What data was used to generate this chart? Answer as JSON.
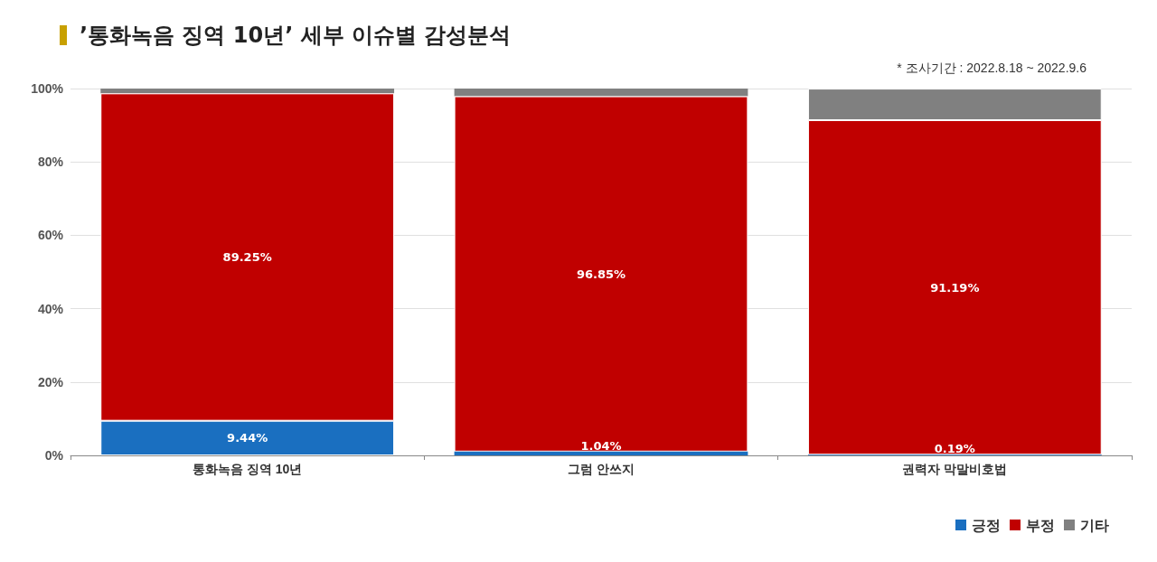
{
  "chart_data": {
    "type": "bar",
    "title": "’통화녹음 징역 10년’ 세부 이슈별 감성분석",
    "annotations": [
      "* 조사기간 : 2022.8.18 ~ 2022.9.6"
    ],
    "categories": [
      "통화녹음 징역 10년",
      "그럼 안쓰지",
      "권력자 막말비호법"
    ],
    "stacked": true,
    "series": [
      {
        "name": "긍정",
        "color": "#1a6fc0",
        "values": [
          9.44,
          1.04,
          0.19
        ],
        "value_labels": [
          "9.44%",
          "1.04%",
          "0.19%"
        ]
      },
      {
        "name": "부정",
        "color": "#c00000",
        "values": [
          89.25,
          96.85,
          91.19
        ],
        "value_labels": [
          "89.25%",
          "96.85%",
          "91.19%"
        ]
      },
      {
        "name": "기타",
        "color": "#808080",
        "values": [
          1.3,
          2.1,
          8.6
        ]
      }
    ],
    "ylim": [
      0,
      100
    ],
    "yticks": [
      {
        "value": 0,
        "label": "0%"
      },
      {
        "value": 20,
        "label": "20%"
      },
      {
        "value": 40,
        "label": "40%"
      },
      {
        "value": 60,
        "label": "60%"
      },
      {
        "value": 80,
        "label": "80%"
      },
      {
        "value": 100,
        "label": "100%"
      }
    ],
    "grid": "y",
    "legend": "bottom right"
  }
}
